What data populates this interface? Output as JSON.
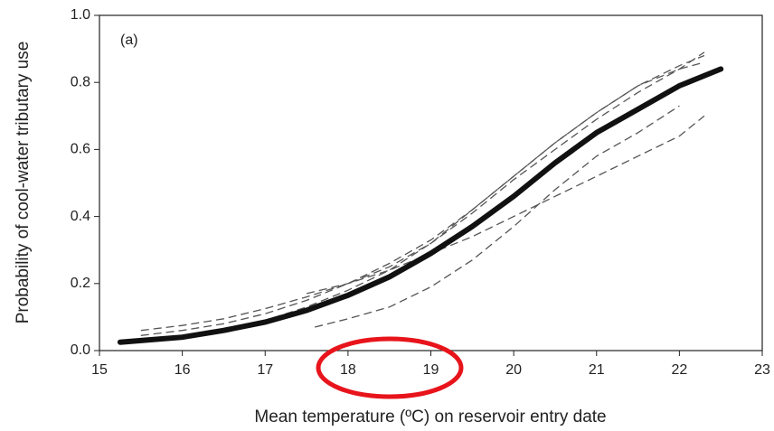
{
  "chart_data": {
    "type": "line",
    "annotation": "(a)",
    "x_label": "Mean temperature (ºC) on reservoir entry date",
    "y_label": "Probability of cool-water tributary use",
    "xlim": [
      15,
      23
    ],
    "xticks": [
      15,
      16,
      17,
      18,
      19,
      20,
      21,
      22,
      23
    ],
    "ylim": [
      0,
      1
    ],
    "yticks": [
      {
        "value": 0,
        "label": "0.0"
      },
      {
        "value": 0.2,
        "label": "0.2"
      },
      {
        "value": 0.4,
        "label": "0.4"
      },
      {
        "value": 0.6,
        "label": "0.6"
      },
      {
        "value": 0.8,
        "label": "0.8"
      },
      {
        "value": 1,
        "label": "1.0"
      }
    ],
    "series": [
      {
        "color": "#555555",
        "dashed": true,
        "x": [
          15.5,
          16,
          16.5,
          17,
          17.5,
          18,
          18.5,
          19,
          19.5,
          20,
          20.5,
          21,
          21.5,
          22,
          22.3
        ],
        "values": [
          0.06,
          0.075,
          0.095,
          0.125,
          0.16,
          0.2,
          0.25,
          0.32,
          0.41,
          0.51,
          0.6,
          0.69,
          0.77,
          0.84,
          0.89
        ]
      },
      {
        "color": "#555555",
        "dashed": true,
        "x": [
          15.5,
          16,
          16.5,
          17,
          17.5,
          18,
          18.5,
          19,
          19.5,
          20,
          20.5,
          21,
          21.5,
          22,
          22.3
        ],
        "values": [
          0.045,
          0.06,
          0.08,
          0.11,
          0.15,
          0.2,
          0.26,
          0.33,
          0.42,
          0.52,
          0.62,
          0.71,
          0.79,
          0.85,
          0.88
        ]
      },
      {
        "color": "#555555",
        "dashed": true,
        "x": [
          17.5,
          18,
          18.5,
          19,
          19.5,
          20,
          20.5,
          21,
          21.5,
          22,
          22.3
        ],
        "values": [
          0.17,
          0.2,
          0.24,
          0.29,
          0.34,
          0.4,
          0.46,
          0.52,
          0.58,
          0.64,
          0.7
        ]
      },
      {
        "color": "#555555",
        "dashed": true,
        "x": [
          17.6,
          18,
          18.5,
          19,
          19.5,
          20,
          20.5,
          21,
          21.5,
          22
        ],
        "values": [
          0.07,
          0.095,
          0.13,
          0.19,
          0.27,
          0.37,
          0.48,
          0.58,
          0.65,
          0.73
        ]
      },
      {
        "color": "#555555",
        "dashed": true,
        "x": [
          16.5,
          17,
          17.5,
          18,
          18.5,
          19,
          19.5,
          20,
          20.5,
          21,
          21.5,
          22,
          22.3
        ],
        "values": [
          0.065,
          0.09,
          0.13,
          0.18,
          0.24,
          0.32,
          0.42,
          0.52,
          0.62,
          0.71,
          0.79,
          0.84,
          0.86
        ]
      },
      {
        "color": "#111111",
        "dashed": false,
        "x": [
          15.25,
          15.5,
          16,
          16.5,
          17,
          17.5,
          18,
          18.5,
          19,
          19.5,
          20,
          20.5,
          21,
          21.5,
          22,
          22.5
        ],
        "values": [
          0.025,
          0.03,
          0.04,
          0.06,
          0.085,
          0.12,
          0.165,
          0.22,
          0.29,
          0.37,
          0.46,
          0.56,
          0.65,
          0.72,
          0.79,
          0.84
        ]
      }
    ]
  }
}
